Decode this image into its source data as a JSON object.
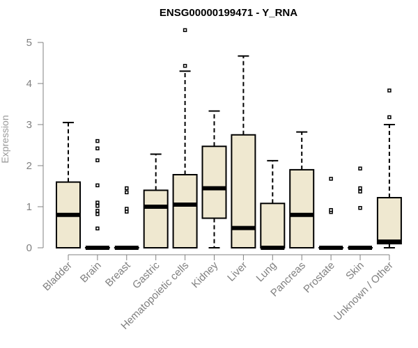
{
  "chart_data": {
    "type": "box",
    "title": "ENSG00000199471 - Y_RNA",
    "xlabel": "",
    "ylabel": "Expression",
    "ylim": [
      0,
      5.35
    ],
    "yticks": [
      "0",
      "1",
      "2",
      "3",
      "4",
      "5"
    ],
    "box_fill": "#efe8d0",
    "categories": [
      "Bladder",
      "Brain",
      "Breast",
      "Gastric",
      "Hematopoietic cells",
      "Kidney",
      "Liver",
      "Lung",
      "Pancreas",
      "Prostate",
      "Skin",
      "Unknown / Other"
    ],
    "series": [
      {
        "q1": 0,
        "median": 0.8,
        "q3": 1.6,
        "whisker_low": 0,
        "whisker_high": 3.05,
        "outliers": []
      },
      {
        "q1": 0,
        "median": 0,
        "q3": 0,
        "whisker_low": 0,
        "whisker_high": 0,
        "outliers": [
          0.47,
          0.82,
          0.9,
          1.02,
          1.1,
          1.52,
          2.13,
          2.42,
          2.6
        ]
      },
      {
        "q1": 0,
        "median": 0,
        "q3": 0,
        "whisker_low": 0,
        "whisker_high": 0,
        "outliers": [
          0.88,
          0.95,
          1.35,
          1.45
        ]
      },
      {
        "q1": 0,
        "median": 1.0,
        "q3": 1.4,
        "whisker_low": 0,
        "whisker_high": 2.28,
        "outliers": []
      },
      {
        "q1": 0,
        "median": 1.05,
        "q3": 1.78,
        "whisker_low": 0,
        "whisker_high": 4.3,
        "outliers": [
          4.43,
          5.3
        ]
      },
      {
        "q1": 0.72,
        "median": 1.45,
        "q3": 2.47,
        "whisker_low": 0,
        "whisker_high": 3.33,
        "outliers": []
      },
      {
        "q1": 0,
        "median": 0.48,
        "q3": 2.75,
        "whisker_low": 0,
        "whisker_high": 4.67,
        "outliers": []
      },
      {
        "q1": 0,
        "median": 0,
        "q3": 1.08,
        "whisker_low": 0,
        "whisker_high": 2.12,
        "outliers": []
      },
      {
        "q1": 0,
        "median": 0.8,
        "q3": 1.9,
        "whisker_low": 0,
        "whisker_high": 2.82,
        "outliers": []
      },
      {
        "q1": 0,
        "median": 0,
        "q3": 0,
        "whisker_low": 0,
        "whisker_high": 0,
        "outliers": [
          0.87,
          0.92,
          1.68
        ]
      },
      {
        "q1": 0,
        "median": 0,
        "q3": 0,
        "whisker_low": 0,
        "whisker_high": 0,
        "outliers": [
          0.97,
          1.37,
          1.45,
          1.93
        ]
      },
      {
        "q1": 0.1,
        "median": 0.15,
        "q3": 1.22,
        "whisker_low": 0,
        "whisker_high": 3.0,
        "outliers": [
          3.18,
          3.83
        ]
      }
    ]
  }
}
